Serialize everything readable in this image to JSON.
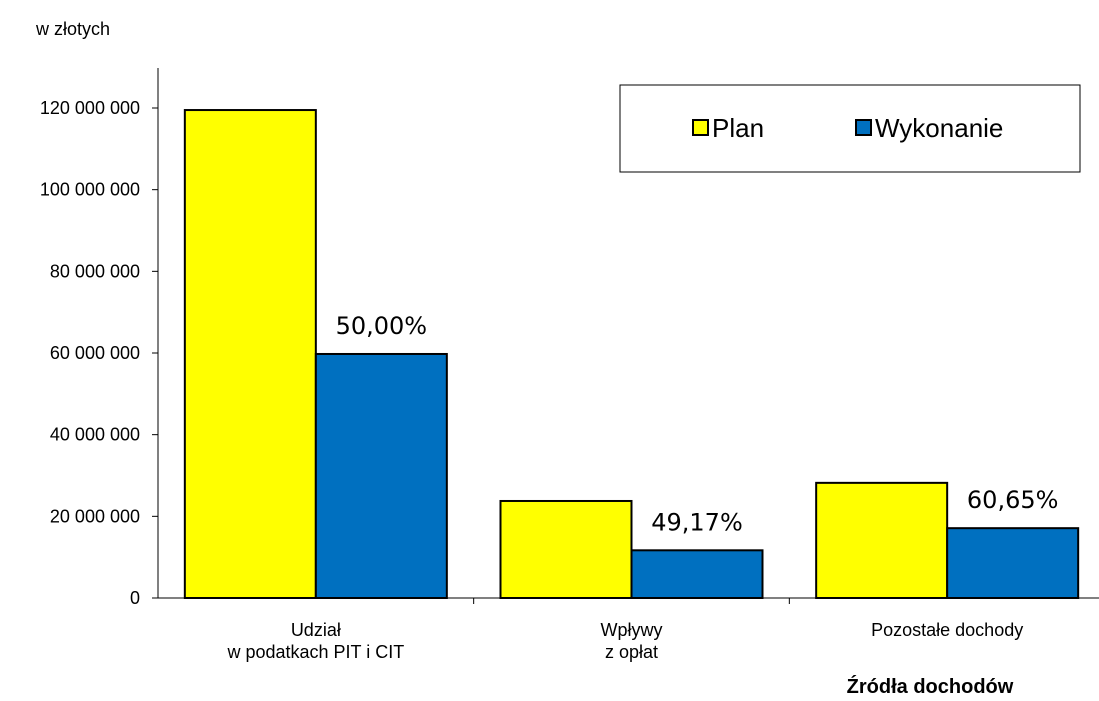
{
  "chart_data": {
    "type": "bar",
    "y_axis_label": "w złotych",
    "x_axis_label": "Źródła dochodów",
    "categories": [
      [
        "Udział",
        "w podatkach PIT i CIT"
      ],
      [
        "Wpływy",
        "z opłat"
      ],
      [
        "Pozostałe dochody"
      ]
    ],
    "series": [
      {
        "name": "Plan",
        "color": "#ffff00",
        "values": [
          119500000,
          23760000,
          28200000
        ]
      },
      {
        "name": "Wykonanie",
        "color": "#0070c0",
        "values": [
          59760000,
          11680000,
          17100000
        ]
      }
    ],
    "annotations": [
      "50,00%",
      "49,17%",
      "60,65%"
    ],
    "ylim": [
      0,
      120000000
    ],
    "yticks": [
      {
        "value": 0,
        "label": "0"
      },
      {
        "value": 20000000,
        "label": "20 000 000"
      },
      {
        "value": 40000000,
        "label": "40 000 000"
      },
      {
        "value": 60000000,
        "label": "60 000 000"
      },
      {
        "value": 80000000,
        "label": "80 000 000"
      },
      {
        "value": 100000000,
        "label": "100 000 000"
      },
      {
        "value": 120000000,
        "label": "120 000 000"
      }
    ],
    "legend": "top-right"
  }
}
